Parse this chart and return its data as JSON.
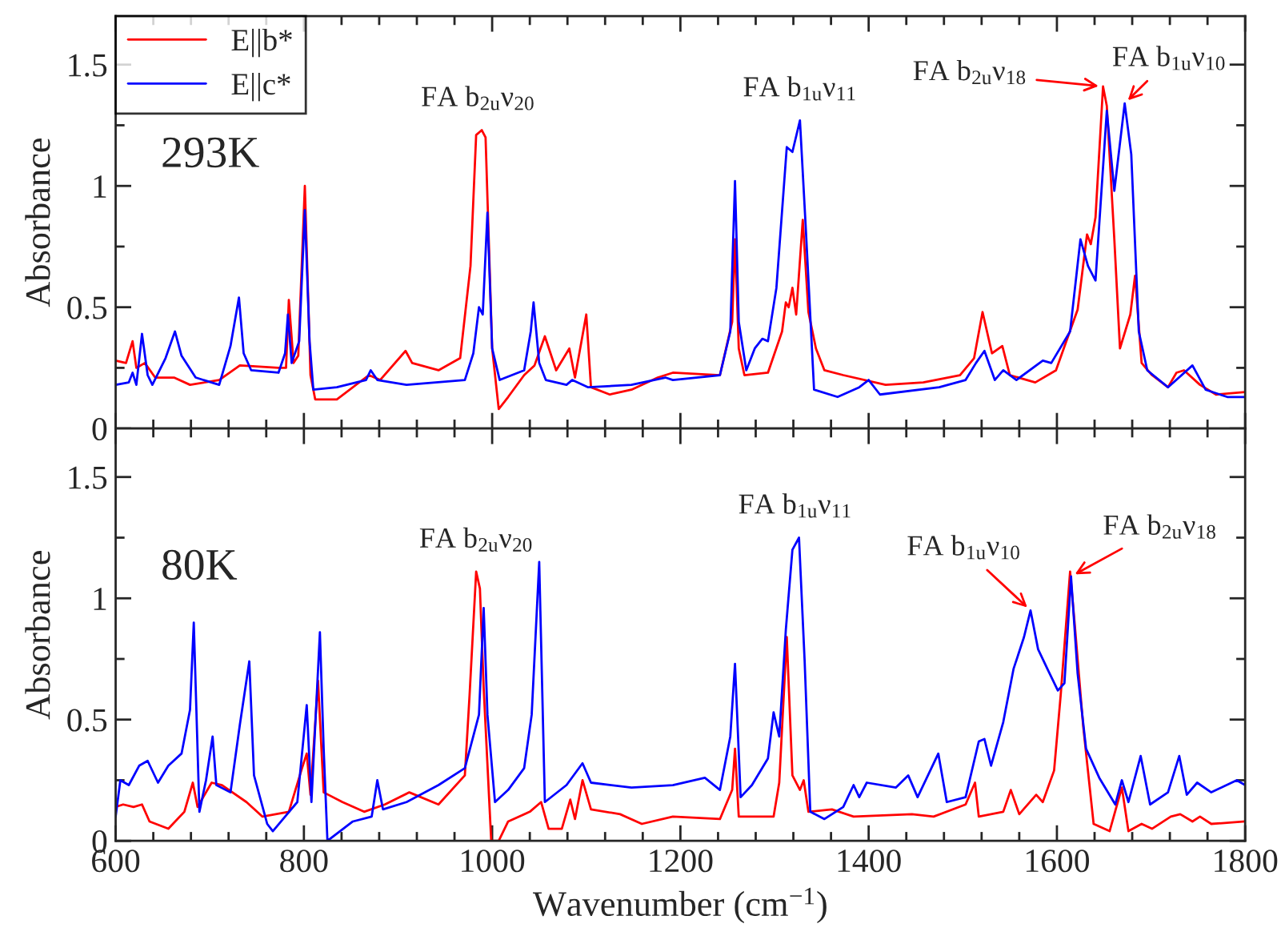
{
  "chart_data": [
    {
      "type": "line",
      "ylabel": "Absorbance",
      "xlim": [
        600,
        1800
      ],
      "ylim": [
        0,
        1.7
      ],
      "xticks": [
        600,
        {
          "value": 640,
          "label": null
        },
        {
          "value": 680,
          "label": null
        },
        {
          "value": 720,
          "label": null
        },
        {
          "value": 760,
          "label": null
        },
        800,
        {
          "value": 840,
          "label": null
        },
        {
          "value": 880,
          "label": null
        },
        {
          "value": 920,
          "label": null
        },
        {
          "value": 960,
          "label": null
        },
        1000,
        {
          "value": 1040,
          "label": null
        },
        {
          "value": 1080,
          "label": null
        },
        {
          "value": 1120,
          "label": null
        },
        {
          "value": 1160,
          "label": null
        },
        1200,
        {
          "value": 1240,
          "label": null
        },
        {
          "value": 1280,
          "label": null
        },
        {
          "value": 1320,
          "label": null
        },
        {
          "value": 1360,
          "label": null
        },
        1400,
        {
          "value": 1440,
          "label": null
        },
        {
          "value": 1480,
          "label": null
        },
        {
          "value": 1520,
          "label": null
        },
        {
          "value": 1560,
          "label": null
        },
        1600,
        {
          "value": 1640,
          "label": null
        },
        {
          "value": 1680,
          "label": null
        },
        {
          "value": 1720,
          "label": null
        },
        {
          "value": 1760,
          "label": null
        },
        1800
      ],
      "yticks": [
        0,
        {
          "value": 0.25,
          "label": null
        },
        0.5,
        {
          "value": 0.75,
          "label": null
        },
        1,
        {
          "value": 1.25,
          "label": null
        },
        1.5
      ],
      "tick_labels": "y",
      "legend": "top left",
      "grid": false,
      "line_style": "solid",
      "annotations": [
        "293K",
        {
          "text": "FA b$_{2u}$ν$_{20}$",
          "x": 985,
          "y": 1.23
        },
        {
          "text": "FA b$_{1u}$ν$_{11}$",
          "x": 1327,
          "y": 1.27
        },
        {
          "text": "FA b$_{2u}$ν$_{18}$",
          "x": 1649,
          "y": 1.41
        },
        {
          "text": "FA b$_{1u}$ν$_{10}$",
          "x": 1672,
          "y": 1.34
        }
      ],
      "series": [
        {
          "name": "E||b*",
          "color": "#ff0000",
          "x": [
            600,
            611,
            618,
            622,
            631,
            642,
            662,
            679,
            710,
            732,
            773,
            781,
            784,
            789,
            794,
            801,
            807,
            812,
            835,
            869,
            881,
            908,
            915,
            943,
            966,
            977,
            983,
            989,
            993,
            1000,
            1007,
            1017,
            1034,
            1045,
            1056,
            1068,
            1082,
            1088,
            1100,
            1105,
            1125,
            1148,
            1176,
            1192,
            1242,
            1255,
            1258,
            1262,
            1268,
            1293,
            1308,
            1312,
            1315,
            1319,
            1323,
            1330,
            1336,
            1344,
            1353,
            1373,
            1418,
            1458,
            1497,
            1512,
            1521,
            1531,
            1542,
            1550,
            1577,
            1599,
            1622,
            1632,
            1636,
            1641,
            1649,
            1653,
            1661,
            1667,
            1678,
            1683,
            1690,
            1701,
            1718,
            1727,
            1735,
            1752,
            1769,
            1800
          ],
          "values": [
            0.28,
            0.27,
            0.36,
            0.25,
            0.27,
            0.21,
            0.21,
            0.18,
            0.2,
            0.26,
            0.25,
            0.25,
            0.53,
            0.27,
            0.3,
            1.0,
            0.22,
            0.12,
            0.12,
            0.22,
            0.2,
            0.32,
            0.27,
            0.24,
            0.29,
            0.67,
            1.21,
            1.23,
            1.2,
            0.33,
            0.08,
            0.13,
            0.22,
            0.26,
            0.38,
            0.24,
            0.33,
            0.21,
            0.47,
            0.17,
            0.14,
            0.16,
            0.21,
            0.23,
            0.22,
            0.44,
            0.78,
            0.33,
            0.22,
            0.23,
            0.4,
            0.52,
            0.5,
            0.58,
            0.47,
            0.86,
            0.48,
            0.33,
            0.24,
            0.22,
            0.18,
            0.19,
            0.22,
            0.29,
            0.48,
            0.31,
            0.34,
            0.22,
            0.19,
            0.24,
            0.49,
            0.8,
            0.76,
            0.87,
            1.41,
            1.33,
            0.78,
            0.33,
            0.47,
            0.63,
            0.27,
            0.22,
            0.17,
            0.23,
            0.24,
            0.18,
            0.14,
            0.15
          ]
        },
        {
          "name": "E||c*",
          "color": "#0000ff",
          "x": [
            600,
            614,
            618,
            622,
            628,
            634,
            639,
            653,
            663,
            670,
            685,
            710,
            722,
            731,
            736,
            744,
            773,
            780,
            783,
            787,
            795,
            801,
            806,
            810,
            835,
            866,
            871,
            878,
            909,
            971,
            980,
            986,
            990,
            995,
            1000,
            1008,
            1034,
            1041,
            1044,
            1050,
            1057,
            1079,
            1085,
            1102,
            1148,
            1184,
            1192,
            1242,
            1253,
            1258,
            1262,
            1270,
            1279,
            1287,
            1293,
            1302,
            1313,
            1319,
            1327,
            1333,
            1342,
            1367,
            1390,
            1400,
            1412,
            1475,
            1503,
            1514,
            1523,
            1534,
            1543,
            1557,
            1585,
            1594,
            1614,
            1625,
            1633,
            1641,
            1653,
            1661,
            1672,
            1679,
            1687,
            1696,
            1718,
            1744,
            1758,
            1781,
            1800
          ],
          "values": [
            0.18,
            0.19,
            0.23,
            0.18,
            0.39,
            0.22,
            0.18,
            0.29,
            0.4,
            0.3,
            0.21,
            0.18,
            0.34,
            0.54,
            0.31,
            0.24,
            0.23,
            0.31,
            0.47,
            0.27,
            0.36,
            0.9,
            0.36,
            0.16,
            0.17,
            0.2,
            0.24,
            0.2,
            0.18,
            0.2,
            0.31,
            0.5,
            0.47,
            0.89,
            0.33,
            0.2,
            0.24,
            0.4,
            0.52,
            0.27,
            0.2,
            0.18,
            0.2,
            0.17,
            0.18,
            0.21,
            0.2,
            0.22,
            0.4,
            1.02,
            0.44,
            0.24,
            0.33,
            0.37,
            0.36,
            0.58,
            1.16,
            1.14,
            1.27,
            0.84,
            0.16,
            0.13,
            0.17,
            0.2,
            0.14,
            0.17,
            0.2,
            0.27,
            0.32,
            0.2,
            0.24,
            0.2,
            0.28,
            0.27,
            0.4,
            0.78,
            0.67,
            0.61,
            1.31,
            0.98,
            1.34,
            1.13,
            0.4,
            0.24,
            0.17,
            0.26,
            0.16,
            0.13,
            0.13
          ]
        }
      ]
    },
    {
      "type": "line",
      "xlabel": "Wavenumber (cm$^{−1}$)",
      "ylabel": "Absorbance",
      "xlim": [
        600,
        1800
      ],
      "ylim": [
        0,
        1.7
      ],
      "xticks": [
        600,
        {
          "value": 640,
          "label": null
        },
        {
          "value": 680,
          "label": null
        },
        {
          "value": 720,
          "label": null
        },
        {
          "value": 760,
          "label": null
        },
        800,
        {
          "value": 840,
          "label": null
        },
        {
          "value": 880,
          "label": null
        },
        {
          "value": 920,
          "label": null
        },
        {
          "value": 960,
          "label": null
        },
        1000,
        {
          "value": 1040,
          "label": null
        },
        {
          "value": 1080,
          "label": null
        },
        {
          "value": 1120,
          "label": null
        },
        {
          "value": 1160,
          "label": null
        },
        1200,
        {
          "value": 1240,
          "label": null
        },
        {
          "value": 1280,
          "label": null
        },
        {
          "value": 1320,
          "label": null
        },
        {
          "value": 1360,
          "label": null
        },
        1400,
        {
          "value": 1440,
          "label": null
        },
        {
          "value": 1480,
          "label": null
        },
        {
          "value": 1520,
          "label": null
        },
        {
          "value": 1560,
          "label": null
        },
        1600,
        {
          "value": 1640,
          "label": null
        },
        {
          "value": 1680,
          "label": null
        },
        {
          "value": 1720,
          "label": null
        },
        {
          "value": 1760,
          "label": null
        },
        1800
      ],
      "yticks": [
        0,
        {
          "value": 0.25,
          "label": null
        },
        0.5,
        {
          "value": 0.75,
          "label": null
        },
        1,
        {
          "value": 1.25,
          "label": null
        },
        1.5
      ],
      "grid": false,
      "line_style": "solid",
      "annotations": [
        "80K",
        {
          "text": "FA b$_{2u}$ν$_{20}$",
          "x": 983,
          "y": 1.11
        },
        {
          "text": "FA b$_{1u}$ν$_{11}$",
          "x": 1322,
          "y": 1.25
        },
        {
          "text": "FA b$_{1u}$ν$_{10}$",
          "x": 1572,
          "y": 0.95
        },
        {
          "text": "FA b$_{2u}$ν$_{18}$",
          "x": 1615,
          "y": 1.09
        }
      ],
      "series": [
        {
          "color": "#ff0000",
          "x": [
            600,
            608,
            619,
            628,
            636,
            656,
            673,
            682,
            687,
            702,
            713,
            739,
            756,
            784,
            798,
            803,
            807,
            815,
            821,
            841,
            864,
            886,
            912,
            943,
            971,
            976,
            983,
            987,
            991,
            999,
            1007,
            1017,
            1040,
            1052,
            1060,
            1074,
            1083,
            1088,
            1096,
            1105,
            1136,
            1159,
            1192,
            1242,
            1255,
            1258,
            1262,
            1299,
            1305,
            1313,
            1319,
            1327,
            1331,
            1336,
            1361,
            1384,
            1446,
            1469,
            1503,
            1513,
            1517,
            1543,
            1551,
            1560,
            1578,
            1585,
            1597,
            1604,
            1614,
            1619,
            1628,
            1639,
            1656,
            1669,
            1676,
            1690,
            1701,
            1721,
            1731,
            1744,
            1752,
            1764,
            1800
          ],
          "values": [
            0.14,
            0.15,
            0.14,
            0.15,
            0.08,
            0.05,
            0.12,
            0.24,
            0.14,
            0.24,
            0.23,
            0.16,
            0.1,
            0.12,
            0.3,
            0.36,
            0.19,
            0.66,
            0.2,
            0.16,
            0.12,
            0.15,
            0.2,
            0.15,
            0.27,
            0.6,
            1.11,
            1.04,
            0.63,
            0.0,
            0.0,
            0.08,
            0.12,
            0.16,
            0.05,
            0.05,
            0.17,
            0.09,
            0.25,
            0.13,
            0.11,
            0.07,
            0.1,
            0.09,
            0.21,
            0.38,
            0.1,
            0.1,
            0.24,
            0.84,
            0.27,
            0.21,
            0.25,
            0.12,
            0.13,
            0.1,
            0.11,
            0.1,
            0.15,
            0.24,
            0.1,
            0.12,
            0.21,
            0.11,
            0.19,
            0.16,
            0.29,
            0.6,
            1.11,
            0.89,
            0.47,
            0.07,
            0.04,
            0.22,
            0.04,
            0.07,
            0.05,
            0.1,
            0.11,
            0.08,
            0.1,
            0.07,
            0.08
          ]
        },
        {
          "color": "#0000ff",
          "x": [
            600,
            605,
            614,
            625,
            634,
            645,
            656,
            670,
            679,
            683,
            689,
            696,
            703,
            707,
            722,
            732,
            742,
            747,
            761,
            767,
            793,
            803,
            808,
            817,
            821,
            825,
            852,
            872,
            878,
            884,
            909,
            943,
            971,
            986,
            991,
            995,
            1003,
            1017,
            1034,
            1042,
            1050,
            1056,
            1079,
            1096,
            1105,
            1148,
            1192,
            1226,
            1242,
            1253,
            1258,
            1264,
            1276,
            1293,
            1299,
            1305,
            1312,
            1319,
            1326,
            1332,
            1338,
            1353,
            1373,
            1384,
            1390,
            1398,
            1429,
            1442,
            1452,
            1474,
            1483,
            1503,
            1517,
            1523,
            1530,
            1543,
            1554,
            1565,
            1572,
            1580,
            1591,
            1601,
            1608,
            1615,
            1622,
            1631,
            1645,
            1662,
            1669,
            1676,
            1689,
            1699,
            1718,
            1730,
            1738,
            1749,
            1764,
            1791,
            1800
          ],
          "values": [
            0.1,
            0.25,
            0.23,
            0.31,
            0.33,
            0.24,
            0.31,
            0.36,
            0.54,
            0.9,
            0.12,
            0.25,
            0.43,
            0.23,
            0.2,
            0.48,
            0.74,
            0.27,
            0.07,
            0.04,
            0.16,
            0.56,
            0.16,
            0.86,
            0.38,
            0.0,
            0.08,
            0.1,
            0.25,
            0.13,
            0.16,
            0.23,
            0.3,
            0.52,
            0.96,
            0.52,
            0.16,
            0.21,
            0.3,
            0.52,
            1.15,
            0.16,
            0.23,
            0.32,
            0.24,
            0.22,
            0.23,
            0.26,
            0.21,
            0.43,
            0.73,
            0.18,
            0.23,
            0.34,
            0.53,
            0.43,
            0.87,
            1.2,
            1.25,
            0.74,
            0.12,
            0.09,
            0.14,
            0.23,
            0.18,
            0.24,
            0.22,
            0.27,
            0.18,
            0.36,
            0.16,
            0.18,
            0.41,
            0.42,
            0.31,
            0.49,
            0.71,
            0.84,
            0.95,
            0.79,
            0.7,
            0.62,
            0.65,
            1.09,
            0.69,
            0.38,
            0.26,
            0.15,
            0.25,
            0.16,
            0.35,
            0.15,
            0.2,
            0.35,
            0.19,
            0.24,
            0.2,
            0.25,
            0.23
          ]
        }
      ]
    }
  ]
}
